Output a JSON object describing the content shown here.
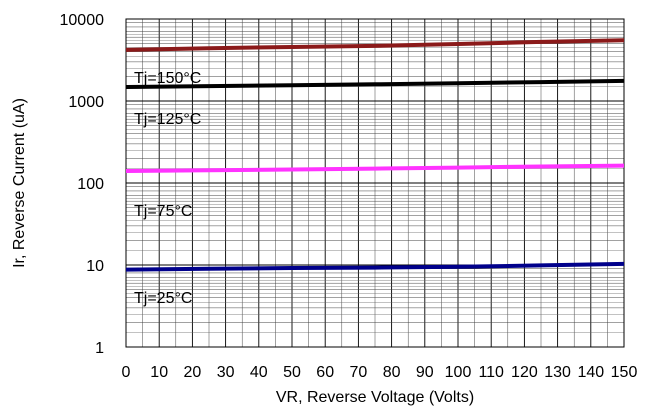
{
  "chart_data": {
    "type": "line",
    "title": "",
    "xlabel": "VR, Reverse Voltage (Volts)",
    "ylabel": "Ir, Reverse Current (uA)",
    "x_scale": "linear",
    "y_scale": "log",
    "xlim": [
      0,
      150
    ],
    "ylim": [
      1,
      10000
    ],
    "grid": true,
    "x_ticks": [
      0,
      10,
      20,
      30,
      40,
      50,
      60,
      70,
      80,
      90,
      100,
      110,
      120,
      130,
      140,
      150
    ],
    "x_tick_labels": [
      "0",
      "10",
      "20",
      "30",
      "40",
      "50",
      "60",
      "70",
      "80",
      "90",
      "100",
      "110",
      "120",
      "130",
      "140",
      "150"
    ],
    "y_ticks": [
      1,
      10,
      100,
      1000,
      10000
    ],
    "y_tick_labels": [
      "1",
      "10",
      "100",
      "1000",
      "10000"
    ],
    "series": [
      {
        "name": "Tj=150°C",
        "color": "#8b1a1a",
        "x": [
          0,
          25,
          50,
          75,
          100,
          125,
          150
        ],
        "y": [
          4200,
          4400,
          4550,
          4700,
          4950,
          5250,
          5500
        ]
      },
      {
        "name": "Tj=125°C",
        "color": "#000000",
        "x": [
          0,
          25,
          50,
          75,
          100,
          125,
          150
        ],
        "y": [
          1480,
          1520,
          1560,
          1600,
          1650,
          1700,
          1760
        ]
      },
      {
        "name": "Tj=75°C",
        "color": "#ff33ff",
        "x": [
          0,
          25,
          50,
          75,
          100,
          125,
          150
        ],
        "y": [
          140,
          143,
          146,
          150,
          154,
          159,
          163
        ]
      },
      {
        "name": "Tj=25°C",
        "color": "#00008b",
        "x": [
          0,
          25,
          50,
          75,
          100,
          125,
          150
        ],
        "y": [
          8.8,
          9.0,
          9.2,
          9.3,
          9.5,
          9.9,
          10.3
        ]
      }
    ]
  }
}
